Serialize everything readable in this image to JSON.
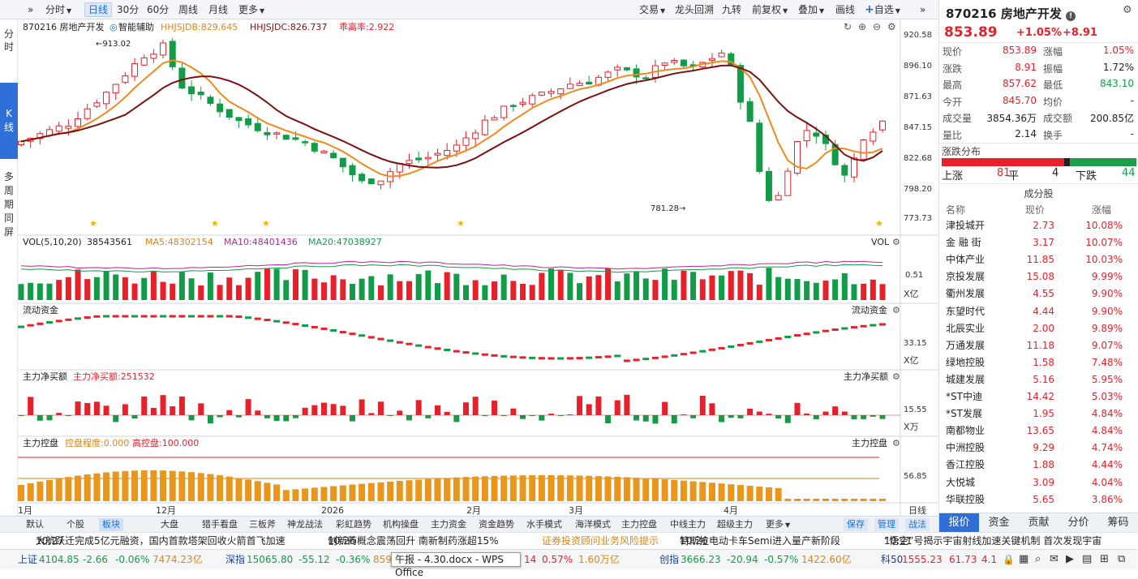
{
  "toolbar": {
    "left_arrows": "»",
    "items": [
      "分时",
      "日线",
      "30分",
      "60分",
      "周线",
      "月线",
      "更多"
    ],
    "active": "日线",
    "right_items": [
      "交易",
      "龙头回溯",
      "九转",
      "前复权",
      "叠加",
      "画线"
    ],
    "add_watch": "自选",
    "right_arrows": "»"
  },
  "left_nav": [
    "分",
    "时",
    "K",
    "线",
    "多",
    "周",
    "期",
    "同",
    "屏"
  ],
  "main_chart": {
    "stock_label": "870216 房地产开发",
    "assist": "智能辅助",
    "ind1": "HHJSJDB:829.645",
    "ind2": "HHJSJDC:826.737",
    "ind3": "乖离率:2.922",
    "y_ticks": [
      "920.58",
      "896.10",
      "871.63",
      "847.15",
      "822.68",
      "798.20",
      "773.73"
    ],
    "high_label": "913.02",
    "low_label": "781.28"
  },
  "vol_panel": {
    "title": "VOL(5,10,20)",
    "v": "38543561",
    "ma5": "MA5:48302154",
    "ma10": "MA10:48401436",
    "ma20": "MA20:47038927",
    "right_title": "VOL",
    "y_tick": "0.51",
    "unit": "X亿"
  },
  "flow_panel": {
    "title": "流动资金",
    "right_title": "流动资金",
    "y_tick": "33.15",
    "unit": "X亿"
  },
  "net_panel": {
    "title": "主力净买额",
    "value": "主力净买额:251532",
    "right_title": "主力净买额",
    "y_tick": "15.55",
    "unit": "X万"
  },
  "ctrl_panel": {
    "title": "主力控盘",
    "v1": "控盘程度:0.000",
    "v2": "高控盘:100.000",
    "right_title": "主力控盘",
    "y_tick": "56.85"
  },
  "x_labels": [
    "1月",
    "12月",
    "2026",
    "2月",
    "3月",
    "4月"
  ],
  "period_label": "日线",
  "bottom_tabs": [
    "默认",
    "个股",
    "板块",
    "大盘",
    "猎手看盘",
    "三板斧",
    "神龙战法",
    "彩虹趋势",
    "机构操盘",
    "主力资金",
    "资金趋势",
    "水手模式",
    "海洋模式",
    "主力控盘",
    "中线主力",
    "超级主力",
    "更多"
  ],
  "bottom_active": "板块",
  "bottom_right": [
    "保存",
    "管理",
    "战法"
  ],
  "news": [
    {
      "time": "10:27",
      "text": "大航跃迁完成5亿元融资，国内首款塔架回收火箭首飞加速"
    },
    {
      "time": "10:26",
      "text": "创新药概念震荡回升 南新制药涨超15%"
    },
    {
      "time": "",
      "text": "证券投资顾问业务风险提示"
    },
    {
      "time": "10:26",
      "text": "特斯拉电动卡车Semi进入量产新阶段"
    },
    {
      "time": "10:21",
      "text": "“悟空”号揭示宇宙射线加速关键机制 首次发现宇宙"
    }
  ],
  "ticker": {
    "sh": {
      "name": "上证",
      "val": "4104.85",
      "chg": "-2.66",
      "pct": "-0.06%",
      "amt": "7474.23亿"
    },
    "sz": {
      "name": "深指",
      "val": "15065.80",
      "chg": "-55.12",
      "pct": "-0.36%",
      "amt": "859"
    },
    "mid": {
      "pct": "14",
      "pct2": "0.57%",
      "amt": "1.60万亿"
    },
    "cy": {
      "name": "创指",
      "val": "3666.23",
      "chg": "-20.94",
      "pct": "-0.57%",
      "amt": "1422.60亿"
    },
    "kc": {
      "name": "科50",
      "val": "1555.23",
      "chg": "61.73",
      "pct": "4.1"
    }
  },
  "taskbar_popup": "午报 - 4.30.docx - WPS Office",
  "right_panel": {
    "title": "870216 房地产开发",
    "price": "853.89",
    "pct": "+1.05%",
    "chg": "+8.91",
    "quotes": [
      {
        "l": "现价",
        "v": "853.89",
        "c": "up",
        "l2": "涨幅",
        "v2": "1.05%",
        "c2": "up"
      },
      {
        "l": "涨跌",
        "v": "8.91",
        "c": "up",
        "l2": "振幅",
        "v2": "1.72%",
        "c2": "n"
      },
      {
        "l": "最高",
        "v": "857.62",
        "c": "up",
        "l2": "最低",
        "v2": "843.10",
        "c2": "dn"
      },
      {
        "l": "今开",
        "v": "845.70",
        "c": "up",
        "l2": "均价",
        "v2": "-",
        "c2": "n"
      },
      {
        "l": "成交量",
        "v": "3854.36万",
        "c": "n",
        "l2": "成交额",
        "v2": "200.85亿",
        "c2": "n"
      },
      {
        "l": "量比",
        "v": "2.14",
        "c": "n",
        "l2": "换手",
        "v2": "-",
        "c2": "n"
      }
    ],
    "dist_title": "涨跌分布",
    "up_label": "上涨",
    "up_count": "81",
    "flat_label": "平",
    "flat_count": "4",
    "down_label": "下跌",
    "down_count": "44",
    "comp_title": "成分股",
    "comp_headers": [
      "名称",
      "现价",
      "涨幅"
    ],
    "components": [
      {
        "n": "津投城开",
        "p": "2.73",
        "r": "10.08%"
      },
      {
        "n": "金 融 街",
        "p": "3.17",
        "r": "10.07%"
      },
      {
        "n": "中体产业",
        "p": "11.85",
        "r": "10.03%"
      },
      {
        "n": "京投发展",
        "p": "15.08",
        "r": "9.99%"
      },
      {
        "n": "衢州发展",
        "p": "4.55",
        "r": "9.90%"
      },
      {
        "n": "东望时代",
        "p": "4.44",
        "r": "9.90%"
      },
      {
        "n": "北辰实业",
        "p": "2.00",
        "r": "9.89%"
      },
      {
        "n": "万通发展",
        "p": "11.18",
        "r": "9.07%"
      },
      {
        "n": "绿地控股",
        "p": "1.58",
        "r": "7.48%"
      },
      {
        "n": "城建发展",
        "p": "5.16",
        "r": "5.95%"
      },
      {
        "n": "*ST中迪",
        "p": "14.42",
        "r": "5.03%"
      },
      {
        "n": "*ST发展",
        "p": "1.95",
        "r": "4.84%"
      },
      {
        "n": "南都物业",
        "p": "13.65",
        "r": "4.84%"
      },
      {
        "n": "中洲控股",
        "p": "9.29",
        "r": "4.74%"
      },
      {
        "n": "香江控股",
        "p": "1.88",
        "r": "4.44%"
      },
      {
        "n": "大悦城",
        "p": "3.09",
        "r": "4.04%"
      },
      {
        "n": "华联控股",
        "p": "5.65",
        "r": "3.86%"
      }
    ],
    "tabs": [
      "报价",
      "资金",
      "贡献",
      "分价",
      "筹码"
    ],
    "tab_active": "报价"
  }
}
